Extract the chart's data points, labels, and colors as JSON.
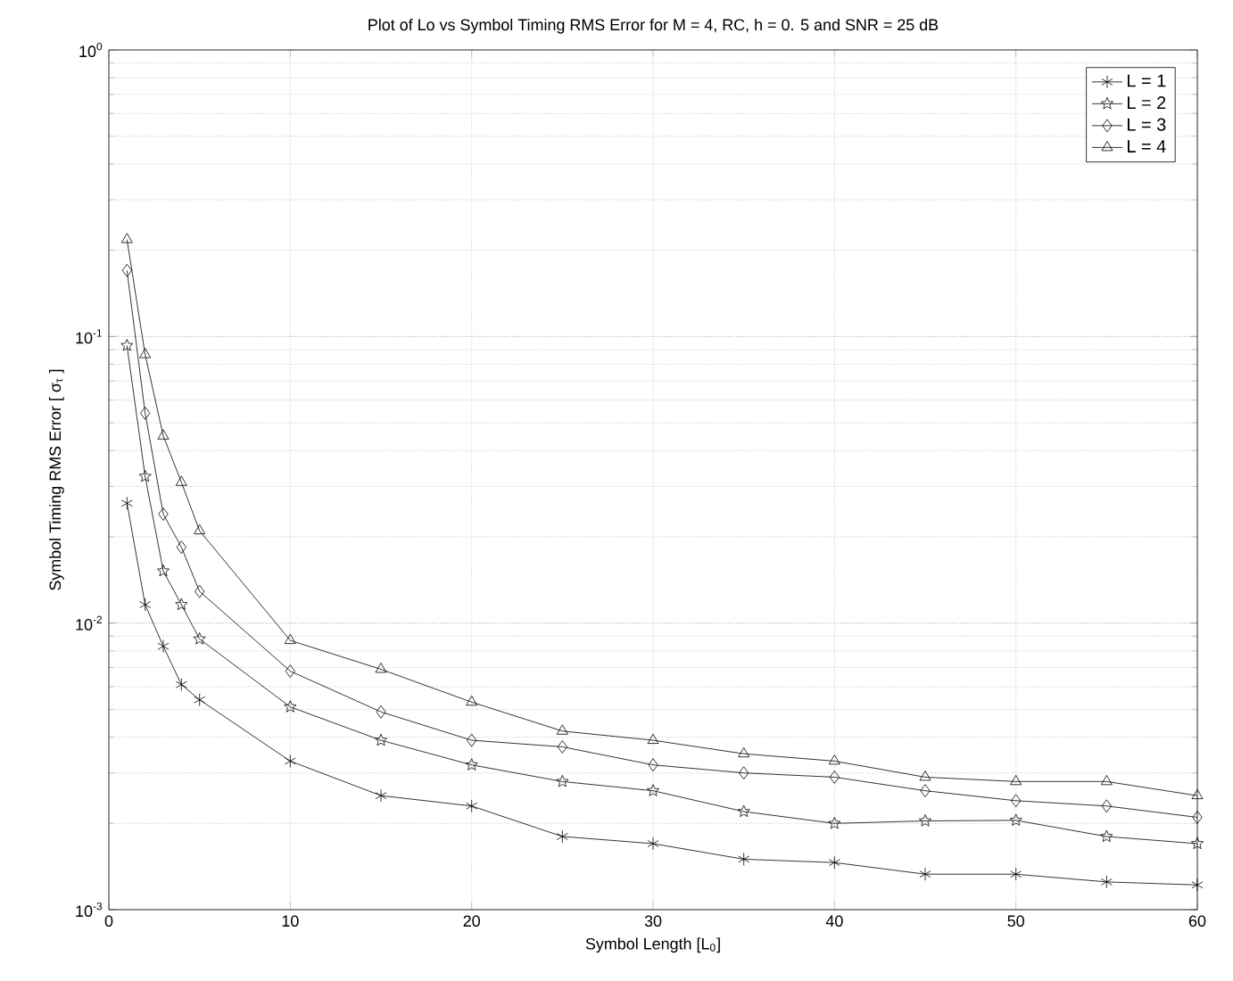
{
  "chart_data": {
    "type": "line",
    "title": "Plot of Lo vs Symbol Timing RMS Error for M = 4, RC, h = 0. 5 and SNR = 25 dB",
    "xlabel": "Symbol Length [L$_{0}$]",
    "ylabel": "Symbol Timing RMS Error [ σ$_{τ}$ ]",
    "x": [
      1,
      2,
      3,
      4,
      5,
      10,
      15,
      20,
      25,
      30,
      35,
      40,
      45,
      50,
      55,
      60
    ],
    "series": [
      {
        "name": "L = 1",
        "color": "#000000",
        "marker": "cross",
        "values": [
          0.0262,
          0.0116,
          0.0083,
          0.0061,
          0.0054,
          0.0033,
          0.0025,
          0.0023,
          0.0018,
          0.0017,
          0.0015,
          0.00146,
          0.00133,
          0.00133,
          0.00125,
          0.00122
        ]
      },
      {
        "name": "L = 2",
        "color": "#000000",
        "marker": "star",
        "values": [
          0.093,
          0.0325,
          0.0152,
          0.0116,
          0.0088,
          0.0051,
          0.0039,
          0.0032,
          0.0028,
          0.0026,
          0.0022,
          0.002,
          0.00204,
          0.00205,
          0.0018,
          0.0017
        ]
      },
      {
        "name": "L = 3",
        "color": "#000000",
        "marker": "diamond",
        "values": [
          0.17,
          0.054,
          0.024,
          0.0184,
          0.0129,
          0.0068,
          0.0049,
          0.0039,
          0.0037,
          0.0032,
          0.003,
          0.0029,
          0.0026,
          0.0024,
          0.0023,
          0.0021
        ]
      },
      {
        "name": "L = 4",
        "color": "#000000",
        "marker": "triangle",
        "values": [
          0.218,
          0.0865,
          0.045,
          0.031,
          0.021,
          0.0087,
          0.0069,
          0.0053,
          0.0042,
          0.0039,
          0.0035,
          0.0033,
          0.0029,
          0.0028,
          0.0028,
          0.0025
        ]
      }
    ],
    "log": "y",
    "grid": true,
    "legend": "top right",
    "line_style": "solid",
    "xlim": [
      0,
      60
    ],
    "xticks": [
      0,
      10,
      20,
      30,
      40,
      50,
      60
    ],
    "ylim": [
      0.001,
      1
    ],
    "yticks": [
      {
        "value": 0.001,
        "label": "10$^{-3}$"
      },
      {
        "value": 0.01,
        "label": "10$^{-2}$"
      },
      {
        "value": 0.1,
        "label": "10$^{-1}$"
      },
      {
        "value": 1,
        "label": "10$^{0}$"
      }
    ]
  }
}
